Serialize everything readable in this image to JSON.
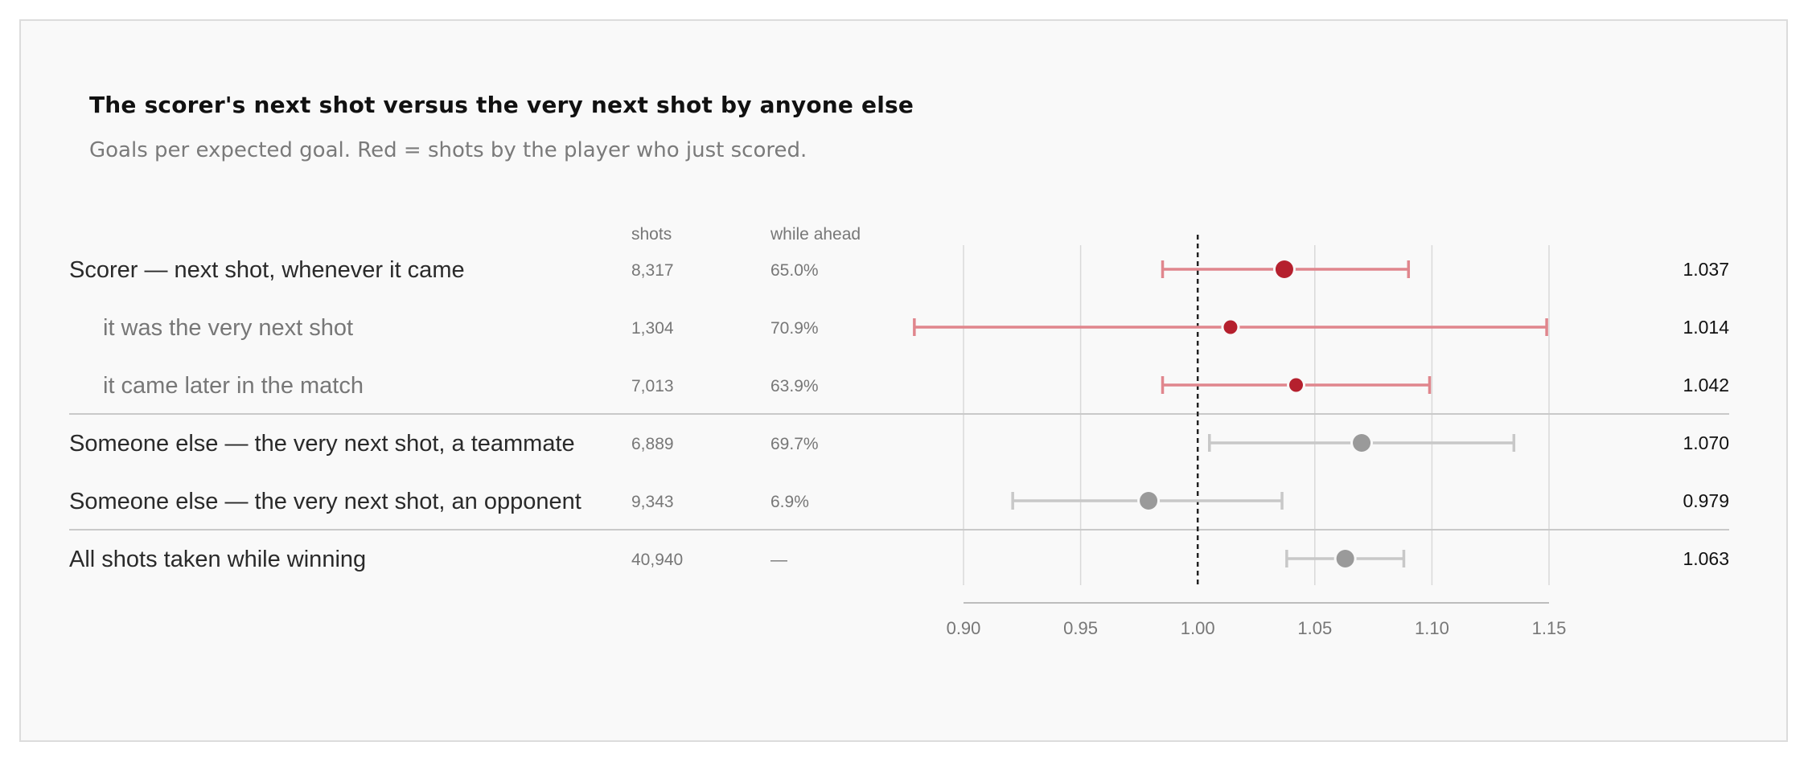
{
  "title": "The scorer's next shot versus the very next shot by anyone else",
  "subtitle": "Goals per expected goal. Red = shots by the player who just scored.",
  "columns": {
    "shots": "shots",
    "ahead": "while ahead"
  },
  "chart_data": {
    "type": "forest",
    "x_ticks": [
      0.9,
      0.95,
      1.0,
      1.05,
      1.1,
      1.15
    ],
    "x_tick_labels": [
      "0.90",
      "0.95",
      "1.00",
      "1.05",
      "1.10",
      "1.15"
    ],
    "xlim": [
      0.9,
      1.15
    ],
    "reference_line": 1.0,
    "grid": true,
    "colors": {
      "scorer": "#b5202e",
      "scorer_ci": "#e0868d",
      "other": "#9a9a9a",
      "other_ci": "#c8c8c8"
    },
    "rows": [
      {
        "label": "Scorer — next shot, whenever it came",
        "shots": "8,317",
        "ahead": "65.0%",
        "value": 1.037,
        "value_label": "1.037",
        "lo": 0.985,
        "hi": 1.09,
        "group": "scorer",
        "indent": false
      },
      {
        "label": "it was the very next shot",
        "shots": "1,304",
        "ahead": "70.9%",
        "value": 1.014,
        "value_label": "1.014",
        "lo": 0.879,
        "hi": 1.149,
        "group": "scorer",
        "indent": true
      },
      {
        "label": "it came later in the match",
        "shots": "7,013",
        "ahead": "63.9%",
        "value": 1.042,
        "value_label": "1.042",
        "lo": 0.985,
        "hi": 1.099,
        "group": "scorer",
        "indent": true
      },
      {
        "label": "Someone else — the very next shot, a teammate",
        "shots": "6,889",
        "ahead": "69.7%",
        "value": 1.07,
        "value_label": "1.070",
        "lo": 1.005,
        "hi": 1.135,
        "group": "other",
        "indent": false
      },
      {
        "label": "Someone else — the very next shot, an opponent",
        "shots": "9,343",
        "ahead": "6.9%",
        "value": 0.979,
        "value_label": "0.979",
        "lo": 0.921,
        "hi": 1.036,
        "group": "other",
        "indent": false
      },
      {
        "label": "All shots taken while winning",
        "shots": "40,940",
        "ahead": "—",
        "value": 1.063,
        "value_label": "1.063",
        "lo": 1.038,
        "hi": 1.088,
        "group": "other",
        "indent": false
      }
    ]
  }
}
